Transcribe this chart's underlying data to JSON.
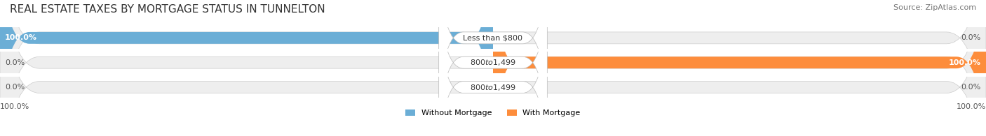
{
  "title": "REAL ESTATE TAXES BY MORTGAGE STATUS IN TUNNELTON",
  "source": "Source: ZipAtlas.com",
  "rows": [
    {
      "label": "Less than $800",
      "without_mortgage": 100.0,
      "with_mortgage": 0.0
    },
    {
      "label": "$800 to $1,499",
      "without_mortgage": 0.0,
      "with_mortgage": 100.0
    },
    {
      "label": "$800 to $1,499",
      "without_mortgage": 0.0,
      "with_mortgage": 0.0
    }
  ],
  "color_without": "#6baed6",
  "color_with": "#fd8d3c",
  "color_without_light": "#c6dbef",
  "color_with_light": "#fdd0a2",
  "bar_bg": "#eeeeee",
  "bar_height": 0.55,
  "xlim": [
    -100,
    100
  ],
  "legend_without": "Without Mortgage",
  "legend_with": "With Mortgage",
  "title_fontsize": 11,
  "source_fontsize": 8,
  "label_fontsize": 8,
  "tick_fontsize": 8
}
